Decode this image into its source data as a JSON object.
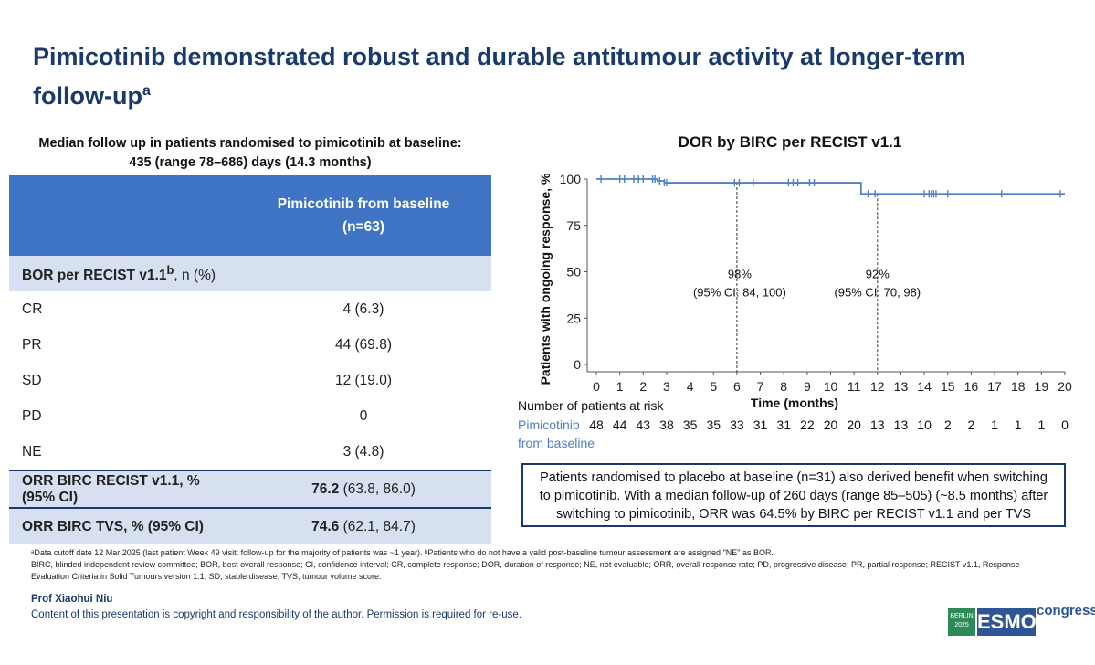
{
  "slide": {
    "title": "Pimicotinib demonstrated robust and durable antitumour activity at longer-term follow-up",
    "title_sup": "a"
  },
  "follow_up": {
    "line1": "Median follow up in patients randomised to pimicotinib at baseline:",
    "line2": "435 (range 78–686) days (14.3 months)"
  },
  "table": {
    "header_line1": "Pimicotinib from baseline",
    "header_line2": "(n=63)",
    "section_label": "BOR per RECIST v1.1",
    "section_sup": "b",
    "section_suffix": ", n (%)",
    "rows": [
      {
        "label": "CR",
        "value": "4 (6.3)"
      },
      {
        "label": "PR",
        "value": "44 (69.8)"
      },
      {
        "label": "SD",
        "value": "12 (19.0)"
      },
      {
        "label": "PD",
        "value": "0"
      },
      {
        "label": "NE",
        "value": "3 (4.8)"
      }
    ],
    "orr_recist": {
      "label": "ORR BIRC RECIST v1.1, % (95% CI)",
      "value_bold": "76.2",
      "value_rest": " (63.8, 86.0)"
    },
    "orr_tvs": {
      "label": "ORR BIRC TVS, % (95% CI)",
      "value_bold": "74.6",
      "value_rest": " (62.1, 84.7)"
    }
  },
  "chart_data": {
    "type": "line",
    "title": "DOR by BIRC per RECIST v1.1",
    "xlabel": "Time (months)",
    "ylabel": "Patients with ongoing response, %",
    "xlim": [
      0,
      20
    ],
    "ylim": [
      0,
      100
    ],
    "x_ticks": [
      0,
      1,
      2,
      3,
      4,
      5,
      6,
      7,
      8,
      9,
      10,
      11,
      12,
      13,
      14,
      15,
      16,
      17,
      18,
      19,
      20
    ],
    "y_ticks": [
      0,
      25,
      50,
      75,
      100
    ],
    "series": [
      {
        "steps": [
          [
            0,
            100
          ],
          [
            2.6,
            100
          ],
          [
            2.6,
            99
          ],
          [
            2.9,
            99
          ],
          [
            2.9,
            98
          ],
          [
            11.3,
            98
          ],
          [
            11.3,
            92
          ],
          [
            20,
            92
          ]
        ],
        "censor_x": [
          0.2,
          1.0,
          1.2,
          1.6,
          1.8,
          2.0,
          2.4,
          2.5,
          2.7,
          2.9,
          3.0,
          5.9,
          6.1,
          6.7,
          8.2,
          8.4,
          8.6,
          9.1,
          9.3,
          11.6,
          11.9,
          14.0,
          14.2,
          14.3,
          14.4,
          14.5,
          15.0,
          17.3,
          19.8
        ],
        "color": "#4f7fc4"
      }
    ],
    "annotations": [
      {
        "x": 6,
        "line1": "98%",
        "line2": "(95% CI: 84, 100)"
      },
      {
        "x": 12,
        "line1": "92%",
        "line2": "(95% CI: 70, 98)"
      }
    ],
    "at_risk_label": "Number of patients at risk",
    "at_risk_group_line1": "Pimicotinib",
    "at_risk_group_line2": "from baseline",
    "at_risk": [
      48,
      44,
      43,
      38,
      35,
      35,
      33,
      31,
      31,
      22,
      20,
      20,
      13,
      13,
      10,
      2,
      2,
      1,
      1,
      1,
      0
    ]
  },
  "placebo_note": "Patients randomised to placebo at baseline (n=31) also derived benefit when switching to pimicotinib. With a median follow-up of 260 days (range 85–505) (~8.5 months) after switching to pimicotinib, ORR was 64.5% by BIRC per RECIST v1.1 and per TVS",
  "footnotes": {
    "line1": "ᵃData cutoff date 12 Mar 2025 (last patient Week 49 visit; follow-up for the majority of patients was ~1 year). ᵇPatients who do not have a valid post-baseline tumour assessment are assigned \"NE\" as BOR.",
    "line2": "BIRC, blinded independent review committee; BOR, best overall response; CI, confidence interval; CR, complete response; DOR, duration of response; NE, not evaluable; ORR, overall response rate; PD, progressive disease; PR, partial response; RECIST v1.1, Response",
    "line3": "Evaluation Criteria in Solid Tumours version 1.1; SD, stable disease; TVS, tumour volume score."
  },
  "presenter": "Prof Xiaohui Niu",
  "copyright": "Content of this presentation is copyright and responsibility of the author. Permission is required for re-use.",
  "logo": {
    "berlin": "BERLIN 2025",
    "esmo": "ESMO",
    "congress": "congress"
  }
}
